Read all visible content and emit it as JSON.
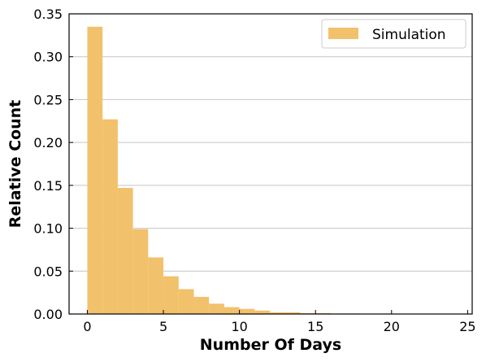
{
  "chart_data": {
    "type": "bar",
    "title": "",
    "xlabel": "Number Of Days",
    "ylabel": "Relative Count",
    "xlim": [
      -1.2,
      25.3
    ],
    "ylim": [
      0,
      0.35
    ],
    "xticks": [
      0,
      5,
      10,
      15,
      20,
      25
    ],
    "yticks": [
      0.0,
      0.05,
      0.1,
      0.15,
      0.2,
      0.25,
      0.3,
      0.35
    ],
    "ytick_labels": [
      "0.00",
      "0.05",
      "0.10",
      "0.15",
      "0.20",
      "0.25",
      "0.30",
      "0.35"
    ],
    "grid": "horizontal",
    "legend_position": "top-right",
    "series": [
      {
        "name": "Simulation",
        "color": "#f2c16b",
        "bin_width": 1,
        "bins": [
          {
            "x0": 0,
            "value": 0.335
          },
          {
            "x0": 1,
            "value": 0.227
          },
          {
            "x0": 2,
            "value": 0.147
          },
          {
            "x0": 3,
            "value": 0.099
          },
          {
            "x0": 4,
            "value": 0.066
          },
          {
            "x0": 5,
            "value": 0.044
          },
          {
            "x0": 6,
            "value": 0.029
          },
          {
            "x0": 7,
            "value": 0.02
          },
          {
            "x0": 8,
            "value": 0.012
          },
          {
            "x0": 9,
            "value": 0.008
          },
          {
            "x0": 10,
            "value": 0.006
          },
          {
            "x0": 11,
            "value": 0.004
          },
          {
            "x0": 12,
            "value": 0.002
          },
          {
            "x0": 13,
            "value": 0.002
          },
          {
            "x0": 14,
            "value": 0.001
          },
          {
            "x0": 15,
            "value": 0.001
          },
          {
            "x0": 16,
            "value": 0.0005
          },
          {
            "x0": 17,
            "value": 0.0005
          },
          {
            "x0": 18,
            "value": 0.0003
          },
          {
            "x0": 19,
            "value": 0.0003
          },
          {
            "x0": 20,
            "value": 0.0002
          },
          {
            "x0": 21,
            "value": 0.0002
          },
          {
            "x0": 22,
            "value": 0.0001
          },
          {
            "x0": 23,
            "value": 0.0001
          }
        ]
      }
    ]
  }
}
